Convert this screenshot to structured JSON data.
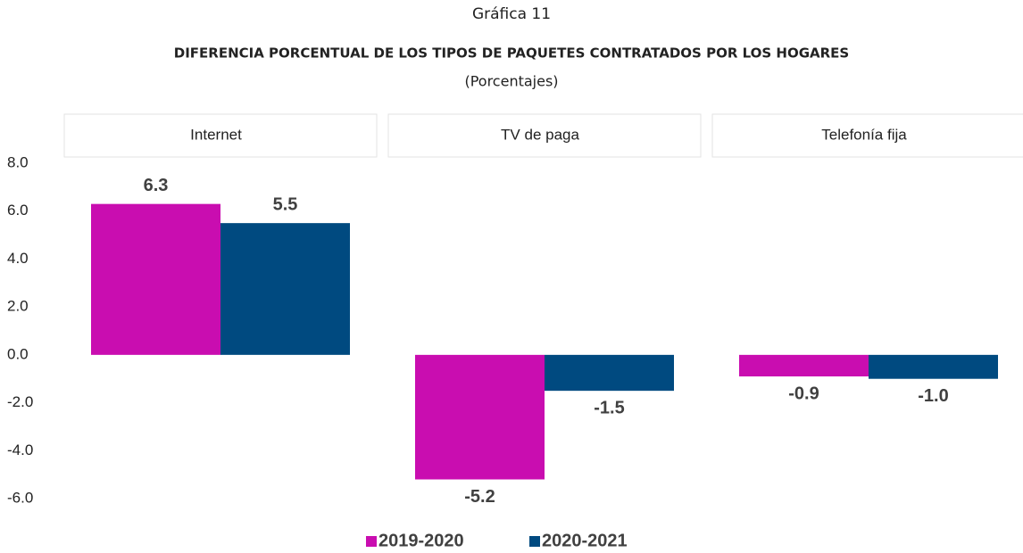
{
  "chart_data": {
    "type": "bar",
    "title": "Gráfica 11",
    "subtitle": "DIFERENCIA PORCENTUAL DE LOS TIPOS DE PAQUETES CONTRATADOS POR LOS HOGARES",
    "unit_note": "(Porcentajes)",
    "categories": [
      "Internet",
      "TV de paga",
      "Telefonía fija"
    ],
    "series": [
      {
        "name": "2019-2020",
        "color": "#c90db0",
        "values": [
          6.3,
          -5.2,
          -0.9
        ],
        "value_labels": [
          "6.3",
          "-5.2",
          "-0.9"
        ]
      },
      {
        "name": "2020-2021",
        "color": "#004a80",
        "values": [
          5.5,
          -1.5,
          -1.0
        ],
        "value_labels": [
          "5.5",
          "-1.5",
          "-1.0"
        ]
      }
    ],
    "ylim": [
      -6,
      8
    ],
    "yticks": [
      {
        "value": 8,
        "label": "8.0"
      },
      {
        "value": 6,
        "label": "6.0"
      },
      {
        "value": 4,
        "label": "4.0"
      },
      {
        "value": 2,
        "label": "2.0"
      },
      {
        "value": 0,
        "label": "0.0"
      },
      {
        "value": -2,
        "label": "-2.0"
      },
      {
        "value": -4,
        "label": "-4.0"
      },
      {
        "value": -6,
        "label": "-6.0"
      }
    ],
    "grid": false,
    "legend": "bottom"
  }
}
